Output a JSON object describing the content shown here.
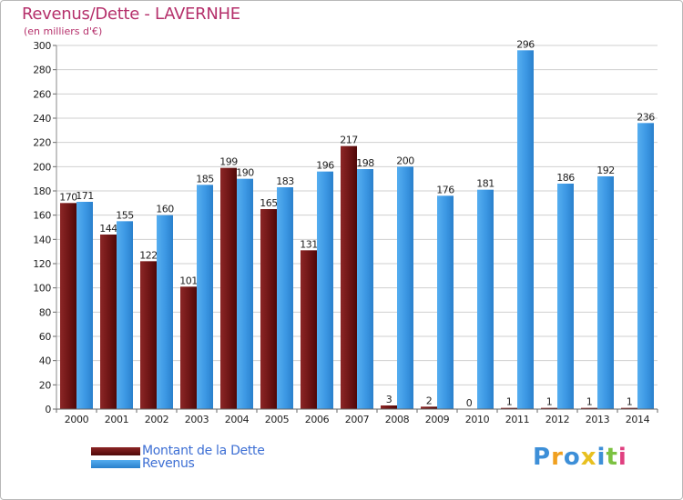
{
  "header": {
    "title": "Revenus/Dette - LAVERNHE",
    "subtitle": "(en milliers d'€)"
  },
  "logo": {
    "text": "Proxiti"
  },
  "colors": {
    "dette": "#7a1a1a",
    "revenus": "#3f9be6",
    "grid": "#c8c8c8"
  },
  "chart_data": {
    "type": "bar",
    "title": "Revenus/Dette - LAVERNHE",
    "subtitle": "(en milliers d'€)",
    "categories": [
      "2000",
      "2001",
      "2002",
      "2003",
      "2004",
      "2005",
      "2006",
      "2007",
      "2008",
      "2009",
      "2010",
      "2011",
      "2012",
      "2013",
      "2014"
    ],
    "series": [
      {
        "name": "Montant de la Dette",
        "color": "#7a1a1a",
        "values": [
          170,
          144,
          122,
          101,
          199,
          165,
          131,
          217,
          3,
          2,
          0,
          1,
          1,
          1,
          1
        ]
      },
      {
        "name": "Revenus",
        "color": "#3f9be6",
        "values": [
          171,
          155,
          160,
          185,
          190,
          183,
          196,
          198,
          200,
          176,
          181,
          296,
          186,
          192,
          236
        ]
      }
    ],
    "ylim": [
      0,
      300
    ],
    "yticks": [
      0,
      20,
      40,
      60,
      80,
      100,
      120,
      140,
      160,
      180,
      200,
      220,
      240,
      260,
      280,
      300
    ],
    "grid": true,
    "legend": "bottom-left"
  }
}
